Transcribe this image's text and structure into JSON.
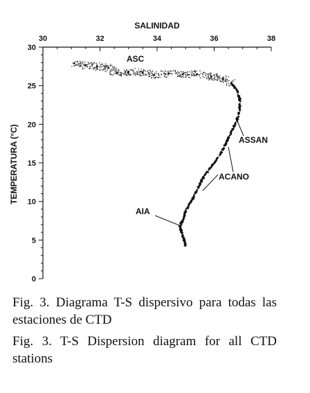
{
  "chart_data": {
    "type": "scatter",
    "xlabel": "SALINIDAD",
    "ylabel": "TEMPERATURA (°C)",
    "xlim": [
      30,
      38
    ],
    "ylim": [
      0,
      30
    ],
    "xticks": [
      30,
      32,
      34,
      36,
      38
    ],
    "yticks": [
      0,
      5,
      10,
      15,
      20,
      25,
      30
    ],
    "x_axis_position": "top",
    "grid": false,
    "legend": "none",
    "point_color": "#111111",
    "series": [
      {
        "values": [
          {
            "x": 31.1,
            "y": 27.9
          },
          {
            "x": 31.5,
            "y": 27.6
          },
          {
            "x": 31.9,
            "y": 27.5
          },
          {
            "x": 32.3,
            "y": 27.3
          },
          {
            "x": 32.6,
            "y": 26.6
          },
          {
            "x": 33.0,
            "y": 26.8
          },
          {
            "x": 33.5,
            "y": 26.7
          },
          {
            "x": 33.9,
            "y": 26.4
          },
          {
            "x": 34.4,
            "y": 26.6
          },
          {
            "x": 34.9,
            "y": 26.5
          },
          {
            "x": 35.4,
            "y": 26.5
          },
          {
            "x": 35.9,
            "y": 26.2
          },
          {
            "x": 36.3,
            "y": 25.9
          },
          {
            "x": 36.6,
            "y": 25.3
          },
          {
            "x": 36.8,
            "y": 24.4
          },
          {
            "x": 36.9,
            "y": 23.2
          },
          {
            "x": 36.9,
            "y": 22.0
          },
          {
            "x": 36.8,
            "y": 20.5
          },
          {
            "x": 36.6,
            "y": 19.0
          },
          {
            "x": 36.4,
            "y": 17.5
          },
          {
            "x": 36.2,
            "y": 16.0
          },
          {
            "x": 35.9,
            "y": 14.5
          },
          {
            "x": 35.6,
            "y": 13.0
          },
          {
            "x": 35.4,
            "y": 11.5
          },
          {
            "x": 35.2,
            "y": 10.0
          },
          {
            "x": 35.0,
            "y": 8.7
          },
          {
            "x": 34.9,
            "y": 7.6
          },
          {
            "x": 34.8,
            "y": 6.8
          },
          {
            "x": 34.85,
            "y": 6.0
          },
          {
            "x": 34.95,
            "y": 5.0
          },
          {
            "x": 35.0,
            "y": 4.3
          }
        ]
      }
    ],
    "annotations": [
      {
        "text": "ASC",
        "x": 33.0,
        "y": 28.0
      },
      {
        "text": "ASSAN",
        "x": 37.3,
        "y": 18.0
      },
      {
        "text": "ACANO",
        "x": 36.1,
        "y": 13.0
      },
      {
        "text": "AIA",
        "x": 33.6,
        "y": 8.8
      }
    ]
  },
  "captions": [
    "Fig. 3. Diagrama T-S dispersivo para todas las estaciones de CTD",
    "Fig. 3. T-S Dispersion diagram for all CTD stations"
  ]
}
